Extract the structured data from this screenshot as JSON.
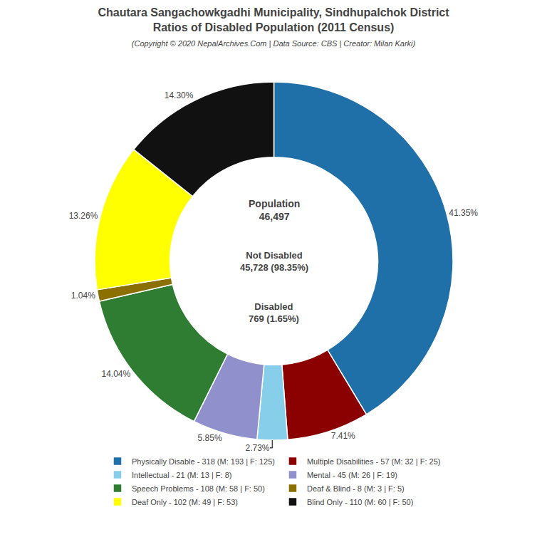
{
  "chart_data": {
    "type": "pie",
    "title": "Chautara Sangachowkgadhi Municipality, Sindhupalchok District\nRatios of Disabled Population (2011 Census)",
    "subtitle": "(Copyright © 2020 NepalArchives.Com | Data Source: CBS | Creator: Milan Karki)",
    "categories": [
      "Physically Disable - 318 (M: 193 | F: 125)",
      "Multiple Disabilities - 57 (M: 32 | F: 25)",
      "Intellectual - 21 (M: 13 | F: 8)",
      "Mental - 45 (M: 26 | F: 19)",
      "Speech Problems - 108 (M: 58 | F: 50)",
      "Deaf & Blind - 8 (M: 3 | F: 5)",
      "Deaf Only - 102 (M: 49 | F: 53)",
      "Blind Only - 110 (M: 60 | F: 50)"
    ],
    "values": [
      41.35,
      7.41,
      2.73,
      5.85,
      14.04,
      1.04,
      13.26,
      14.3
    ],
    "value_labels": [
      "41.35%",
      "7.41%",
      "2.73%",
      "5.85%",
      "14.04%",
      "1.04%",
      "13.26%",
      "14.30%"
    ],
    "colors": [
      "#1f6fa8",
      "#8b0000",
      "#87ceeb",
      "#9090cc",
      "#2e7d32",
      "#8b7000",
      "#ffff00",
      "#111111"
    ],
    "data_labels": true,
    "legend": "bottom",
    "annotations": [
      "Population\n46,497",
      "Not Disabled\n45,728 (98.35%)",
      "Disabled\n769 (1.65%)"
    ]
  }
}
